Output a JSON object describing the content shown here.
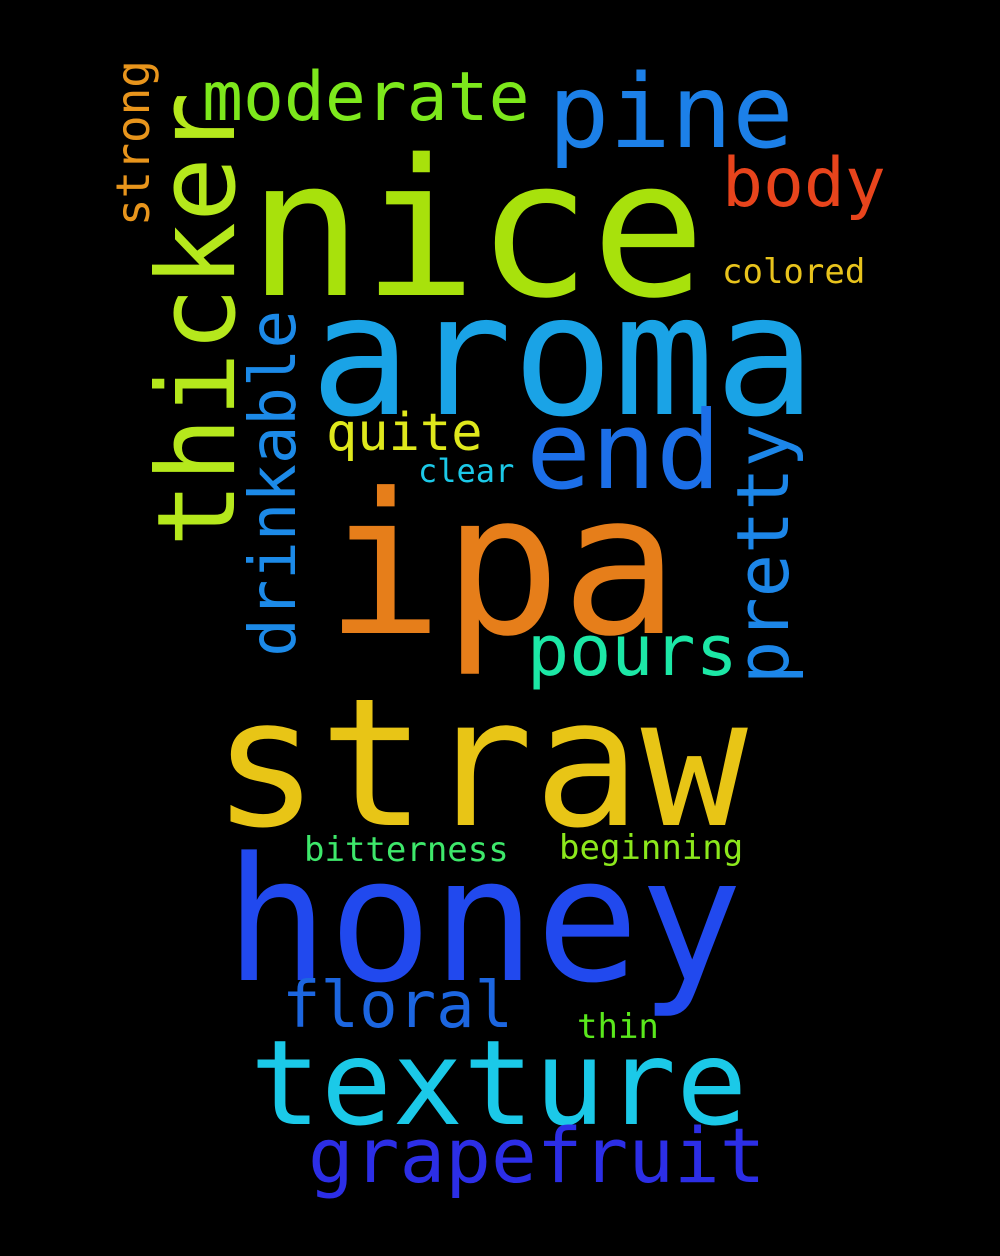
{
  "words": {
    "nice": {
      "text": "nice",
      "color": "#a8e10c"
    },
    "aroma": {
      "text": "aroma",
      "color": "#1aa3e6"
    },
    "ipa": {
      "text": "ipa",
      "color": "#e67e1a"
    },
    "straw": {
      "text": "straw",
      "color": "#e8c516"
    },
    "honey": {
      "text": "honey",
      "color": "#2149ee"
    },
    "texture": {
      "text": "texture",
      "color": "#1bc9e8"
    },
    "grapefruit": {
      "text": "grapefruit",
      "color": "#2c2ee6"
    },
    "pine": {
      "text": "pine",
      "color": "#1c80e8"
    },
    "moderate": {
      "text": "moderate",
      "color": "#7de81c"
    },
    "body": {
      "text": "body",
      "color": "#e8441c"
    },
    "colored": {
      "text": "colored",
      "color": "#e8c31c"
    },
    "end": {
      "text": "end",
      "color": "#1c6fe8"
    },
    "quite": {
      "text": "quite",
      "color": "#dfe81c"
    },
    "clear": {
      "text": "clear",
      "color": "#1cc9e8"
    },
    "pours": {
      "text": "pours",
      "color": "#1ce8a6"
    },
    "bitterness": {
      "text": "bitterness",
      "color": "#3ee86b"
    },
    "beginning": {
      "text": "beginning",
      "color": "#8ce81c"
    },
    "floral": {
      "text": "floral",
      "color": "#1c66e0"
    },
    "thin": {
      "text": "thin",
      "color": "#5ae81c"
    },
    "thicker": {
      "text": "thicker",
      "color": "#b5e81c"
    },
    "drinkable": {
      "text": "drinkable",
      "color": "#1c8ae8"
    },
    "strong": {
      "text": "strong",
      "color": "#e8951c"
    },
    "pretty": {
      "text": "pretty",
      "color": "#1c86e8"
    }
  }
}
